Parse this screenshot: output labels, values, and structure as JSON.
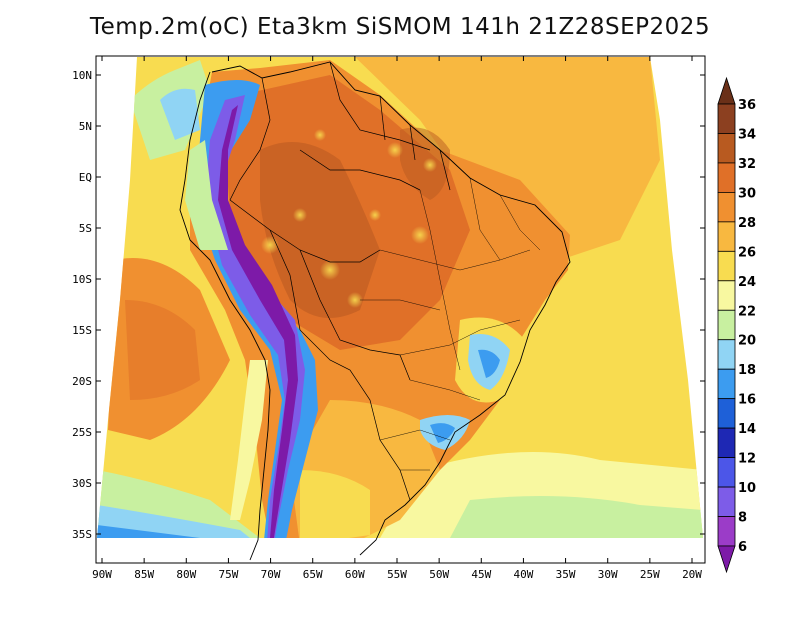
{
  "title": "Temp.2m(oC) Eta3km SiSMOM 141h 21Z28SEP2025",
  "map": {
    "type": "filled-contour-map",
    "variable": "2 m air temperature",
    "units": "oC",
    "model": "Eta3km SiSMOM",
    "forecast_hour": "141h",
    "valid_time": "21Z28SEP2025",
    "lon_range": [
      -90,
      -20
    ],
    "lat_range": [
      -37.5,
      11.5
    ],
    "lon_ticks": [
      "90W",
      "85W",
      "80W",
      "75W",
      "70W",
      "65W",
      "60W",
      "55W",
      "50W",
      "45W",
      "40W",
      "35W",
      "30W",
      "25W",
      "20W"
    ],
    "lat_ticks": [
      "10N",
      "5N",
      "EQ",
      "5S",
      "10S",
      "15S",
      "20S",
      "25S",
      "30S",
      "35S"
    ],
    "lon_values": [
      -90,
      -85,
      -80,
      -75,
      -70,
      -65,
      -60,
      -55,
      -50,
      -45,
      -40,
      -35,
      -30,
      -25,
      -20
    ],
    "lat_values": [
      10,
      5,
      0,
      -5,
      -10,
      -15,
      -20,
      -25,
      -30,
      -35
    ]
  },
  "colorbar": {
    "labels": [
      "6",
      "8",
      "10",
      "12",
      "14",
      "16",
      "18",
      "20",
      "22",
      "24",
      "26",
      "28",
      "30",
      "32",
      "34",
      "36"
    ],
    "levels": [
      6,
      8,
      10,
      12,
      14,
      16,
      18,
      20,
      22,
      24,
      26,
      28,
      30,
      32,
      34,
      36
    ],
    "colors": [
      "#7d1aa8",
      "#9b3cc8",
      "#7d5ce8",
      "#4c56e8",
      "#1e28b4",
      "#1e60d8",
      "#3c9cf0",
      "#90d4f4",
      "#c8f0a0",
      "#f8f8a0",
      "#f8dc50",
      "#f8b840",
      "#f09030",
      "#e07028",
      "#b85a20",
      "#8c4020",
      "#6a3018"
    ],
    "extends": "both"
  }
}
